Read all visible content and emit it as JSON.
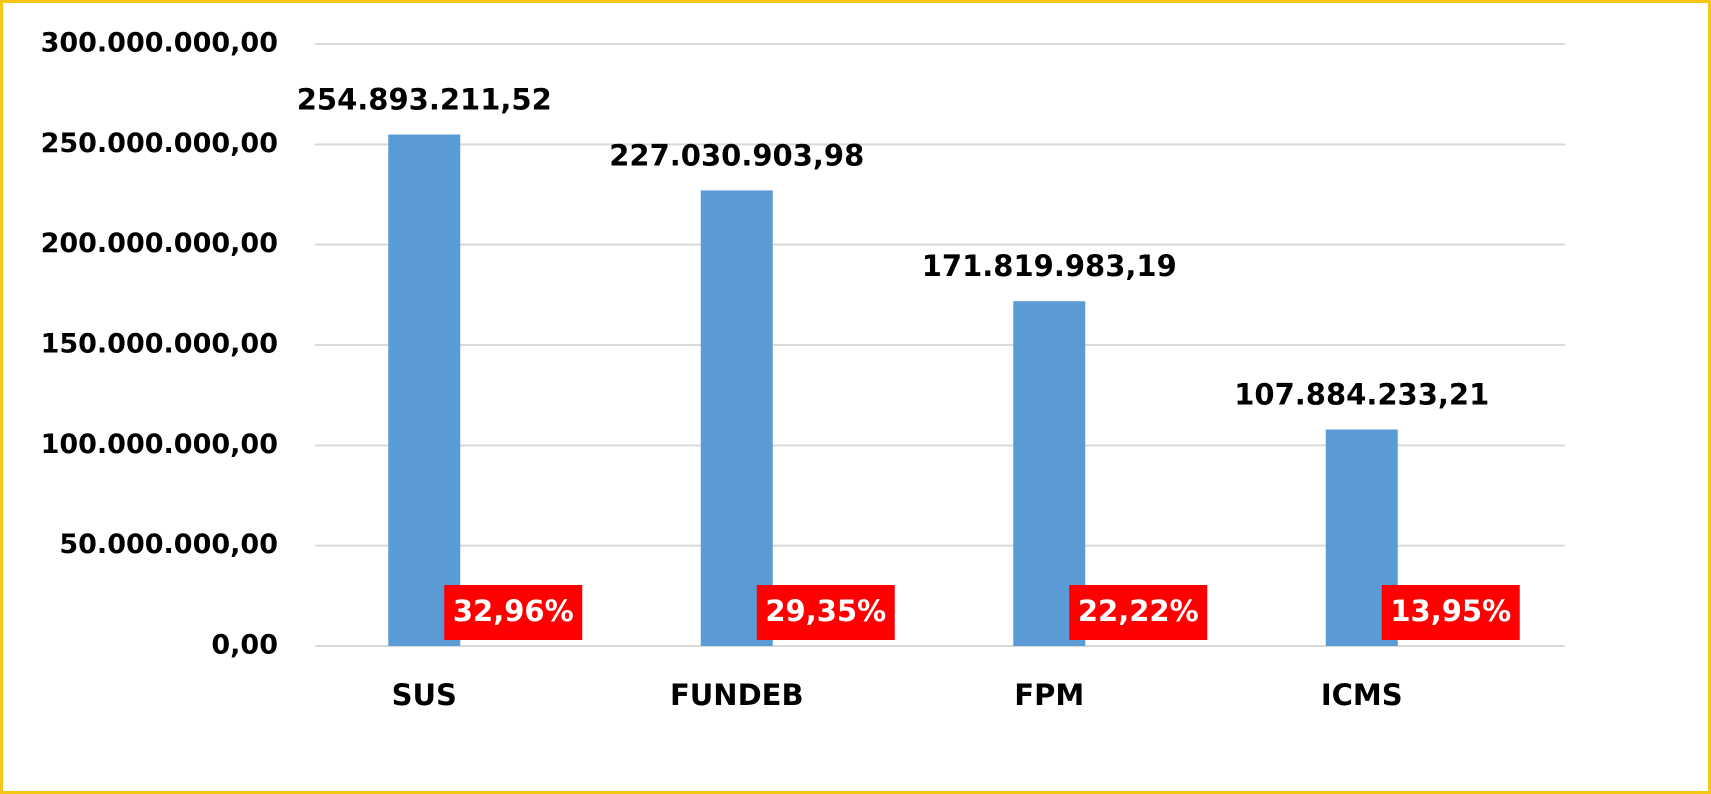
{
  "chart_data": {
    "type": "bar",
    "categories": [
      "SUS",
      "FUNDEB",
      "FPM",
      "ICMS"
    ],
    "values": [
      254893211.52,
      227030903.98,
      171819983.19,
      107884233.21
    ],
    "value_labels": [
      "254.893.211,52",
      "227.030.903,98",
      "171.819.983,19",
      "107.884.233,21"
    ],
    "shares": [
      32.96,
      29.35,
      22.22,
      13.95
    ],
    "share_labels": [
      "32,96%",
      "29,35%",
      "22,22%",
      "13,95%"
    ],
    "color": "#5b9bd5",
    "ylim": [
      0,
      300000000
    ],
    "yticks": [
      {
        "value": 0,
        "label": "0,00"
      },
      {
        "value": 50000000,
        "label": "50.000.000,00"
      },
      {
        "value": 100000000,
        "label": "100.000.000,00"
      },
      {
        "value": 150000000,
        "label": "150.000.000,00"
      },
      {
        "value": 200000000,
        "label": "200.000.000,00"
      },
      {
        "value": 250000000,
        "label": "250.000.000,00"
      },
      {
        "value": 300000000,
        "label": "300.000.000,00"
      }
    ],
    "grid": true
  }
}
